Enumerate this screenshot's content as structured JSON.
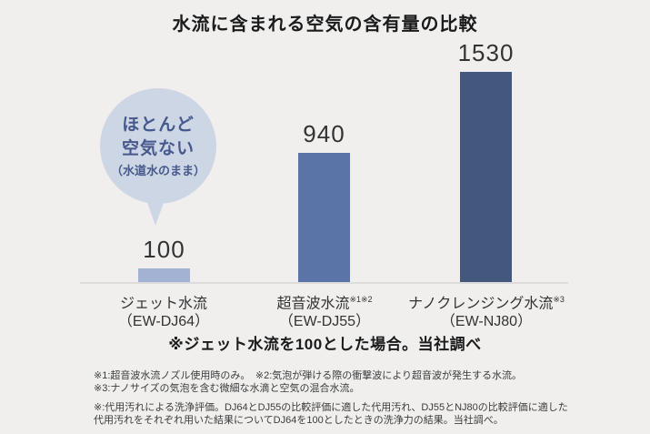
{
  "chart_data": {
    "type": "bar",
    "title": "水流に含まれる空気の含有量の比較",
    "categories": [
      "ジェット水流（EW-DJ64）",
      "超音波水流※1※2（EW-DJ55）",
      "ナノクレンジング水流※3（EW-NJ80）"
    ],
    "values": [
      100,
      940,
      1530
    ],
    "value_labels": [
      "100",
      "940",
      "1530"
    ],
    "bar_colors": [
      "#a3b2d2",
      "#5a74a8",
      "#44587e"
    ],
    "baseline_color": "#dcdcdc",
    "ylim": [
      0,
      1600
    ],
    "grid": false,
    "legend": "none",
    "annotation": "ほとんど空気ない（水道水のまま）",
    "note": "※ジェット水流を100とした場合。当社調べ"
  },
  "title": "水流に含まれる空気の含有量の比較",
  "bubble": {
    "line1": "ほとんど",
    "line2": "空気ない",
    "line3": "（水道水のまま）",
    "bg_color": "#cdd6e5",
    "text_color": "#47598c"
  },
  "bars": [
    {
      "label": "ジェット水流",
      "sup": "",
      "model": "（EW-DJ64）"
    },
    {
      "label": "超音波水流",
      "sup": "※1※2",
      "model": "（EW-DJ55）"
    },
    {
      "label": "ナノクレンジング水流",
      "sup": "※3",
      "model": "（EW-NJ80）"
    }
  ],
  "note": "※ジェット水流を100とした場合。当社調べ",
  "footnotes": {
    "line1": "※1:超音波水流ノズル使用時のみ。　※2:気泡が弾ける際の衝撃波により超音波が発生する水流。",
    "line2": "※3:ナノサイズの気泡を含む微細な水滴と空気の混合水流。",
    "para": "※:代用汚れによる洗浄評価。DJ64とDJ55の比較評価に適した代用汚れ、DJ55とNJ80の比較評価に適した代用汚れをそれぞれ用いた結果についてDJ64を100としたときの洗浄力の結果。当社調べ。"
  }
}
